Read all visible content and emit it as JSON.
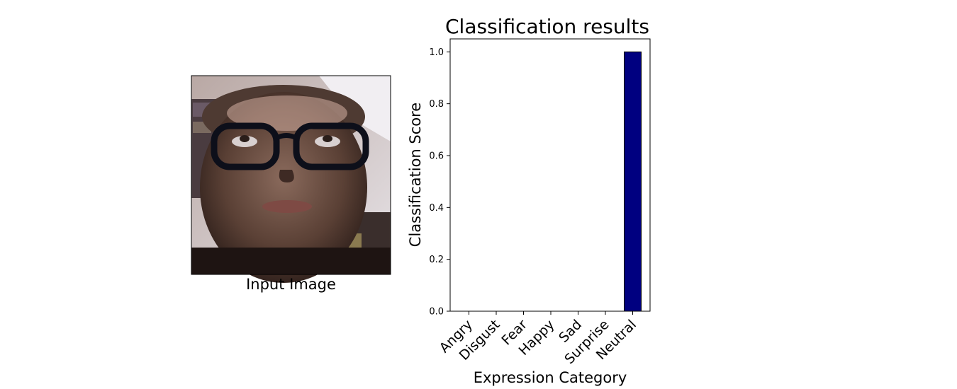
{
  "image_panel": {
    "caption": "Input Image"
  },
  "chart_data": {
    "type": "bar",
    "title": "Classification results",
    "xlabel": "Expression Category",
    "ylabel": "Classification Score",
    "categories": [
      "Angry",
      "Disgust",
      "Fear",
      "Happy",
      "Sad",
      "Surprise",
      "Neutral"
    ],
    "values": [
      0.0,
      0.0,
      0.0,
      0.0,
      0.0,
      0.0,
      1.0
    ],
    "ylim": [
      0.0,
      1.05
    ],
    "yticks": [
      "0.0",
      "0.2",
      "0.4",
      "0.6",
      "0.8",
      "1.0"
    ],
    "bar_color": "#000080",
    "grid": false,
    "legend": "none"
  }
}
